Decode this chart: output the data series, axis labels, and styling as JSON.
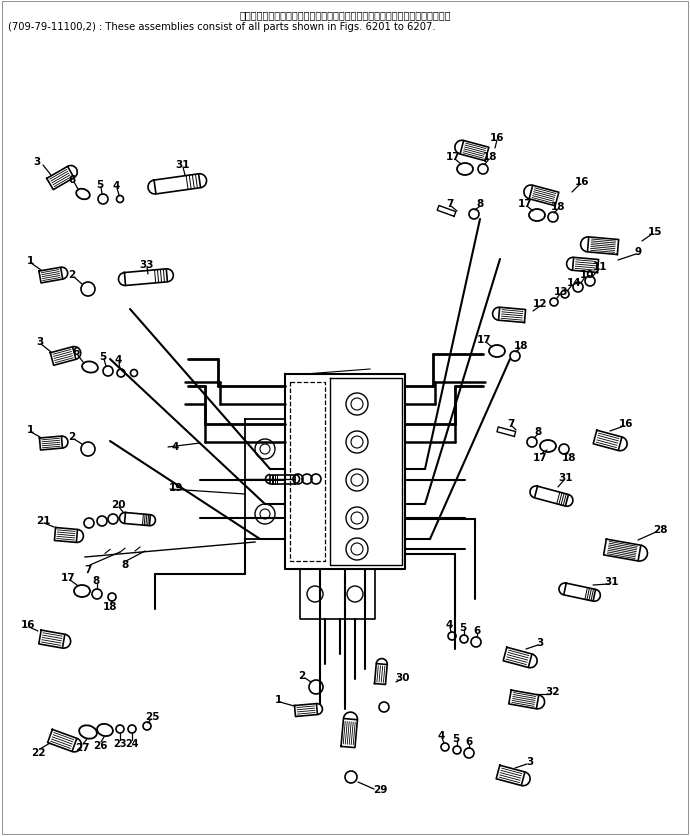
{
  "bg_color": "#ffffff",
  "line_color": "#000000",
  "header_line1": "これらのアセンブリの構成部品は第６２０１図から第６２０７図まで含みます．",
  "header_line2": "(709-79-11100,2) : These assemblies consist of all parts shown in Figs. 6201 to 6207.",
  "figsize": [
    6.9,
    8.37
  ],
  "dpi": 100
}
